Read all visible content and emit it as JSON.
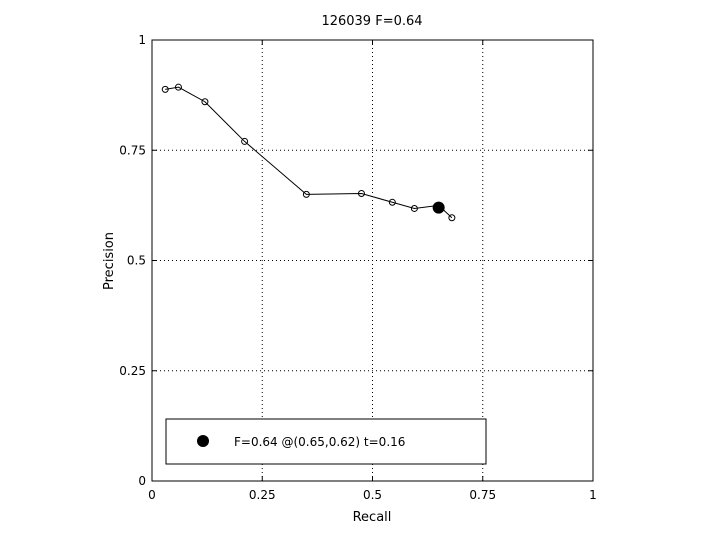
{
  "chart_data": {
    "type": "line",
    "title": "126039 F=0.64",
    "xlabel": "Recall",
    "ylabel": "Precision",
    "xlim": [
      0,
      1
    ],
    "ylim": [
      0,
      1
    ],
    "grid": true,
    "xticks": [
      0,
      0.25,
      0.5,
      0.75,
      1
    ],
    "yticks": [
      0,
      0.25,
      0.5,
      0.75,
      1
    ],
    "xtick_labels": [
      "0",
      "0.25",
      "0.5",
      "0.75",
      "1"
    ],
    "ytick_labels": [
      "0",
      "0.25",
      "0.5",
      "0.75",
      "1"
    ],
    "series": [
      {
        "x": [
          0.03,
          0.06,
          0.12,
          0.21,
          0.35,
          0.475,
          0.545,
          0.595,
          0.65,
          0.68
        ],
        "y": [
          0.888,
          0.893,
          0.86,
          0.77,
          0.65,
          0.652,
          0.632,
          0.618,
          0.625,
          0.597
        ]
      }
    ],
    "highlight_point": {
      "x": 0.65,
      "y": 0.62
    },
    "legend": {
      "position": "bottom",
      "text": "F=0.64 @(0.65,0.62) t=0.16"
    }
  }
}
